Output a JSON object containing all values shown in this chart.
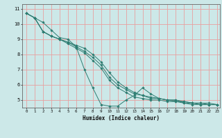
{
  "xlabel": "Humidex (Indice chaleur)",
  "bg_color": "#cce8e8",
  "grid_color": "#e8a0a0",
  "line_color": "#2e7d72",
  "xlim": [
    -0.5,
    23.3
  ],
  "ylim": [
    4.5,
    11.3
  ],
  "xticks": [
    0,
    1,
    2,
    3,
    4,
    5,
    6,
    7,
    8,
    9,
    10,
    11,
    12,
    13,
    14,
    15,
    16,
    17,
    18,
    19,
    20,
    21,
    22,
    23
  ],
  "yticks": [
    5,
    6,
    7,
    8,
    9,
    10,
    11
  ],
  "series": [
    [
      10.7,
      10.4,
      10.1,
      9.6,
      9.1,
      9.0,
      8.5,
      7.0,
      5.8,
      4.7,
      4.6,
      4.6,
      5.0,
      5.3,
      5.8,
      5.4,
      5.1,
      5.0,
      5.0,
      4.8,
      4.7,
      4.7,
      4.7,
      4.7
    ],
    [
      10.7,
      10.4,
      9.5,
      9.2,
      9.0,
      8.8,
      8.6,
      8.4,
      8.0,
      7.5,
      6.8,
      6.2,
      5.8,
      5.5,
      5.3,
      5.2,
      5.1,
      5.0,
      5.0,
      4.9,
      4.8,
      4.8,
      4.8,
      4.7
    ],
    [
      10.7,
      10.4,
      9.5,
      9.2,
      9.0,
      8.8,
      8.5,
      8.2,
      7.8,
      7.3,
      6.5,
      6.0,
      5.7,
      5.4,
      5.3,
      5.1,
      5.1,
      5.0,
      4.9,
      4.9,
      4.8,
      4.8,
      4.7,
      4.7
    ],
    [
      10.7,
      10.4,
      9.5,
      9.2,
      9.0,
      8.7,
      8.4,
      8.1,
      7.6,
      7.1,
      6.3,
      5.8,
      5.5,
      5.2,
      5.1,
      5.0,
      5.0,
      4.9,
      4.9,
      4.8,
      4.8,
      4.7,
      4.7,
      4.7
    ]
  ]
}
